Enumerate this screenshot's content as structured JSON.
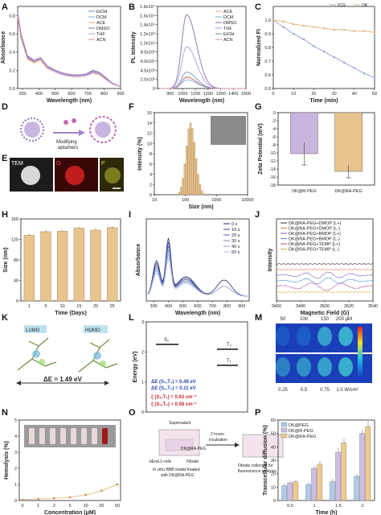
{
  "panel_labels": [
    "A",
    "B",
    "C",
    "D",
    "E",
    "F",
    "G",
    "H",
    "I",
    "J",
    "K",
    "L",
    "M",
    "N",
    "O",
    "P"
  ],
  "colors": {
    "EtOH": "#6e8fc4",
    "DCM": "#7fb0d9",
    "ACE": "#e8b27a",
    "DMSO": "#8e6db3",
    "THF": "#b39ddb",
    "ACN": "#d48fae",
    "ICG": "#9aa9d6",
    "DK": "#e3b887",
    "bar_tan": "#e8c48f",
    "bar_purple": "#c8b4dd",
    "dk_peg": "#aecbe8",
    "dk_r_peg": "#cdbce3",
    "dk_ra_peg": "#f0c98e"
  },
  "panel_d": {
    "arrow_label_line1": "Modifying",
    "arrow_label_line2": "aptamers"
  },
  "panel_e": {
    "labels": [
      "TEM",
      "O",
      "P"
    ]
  },
  "panel_k": {
    "lumo": "LUMO",
    "homo": "HOMO",
    "delta": "ΔE = 1.49 eV"
  },
  "panel_l": {
    "s1": "S₁",
    "t2": "T₂",
    "t1": "T₁",
    "de1": "ΔE (S₁,T₁) = 0.48 eV",
    "de2": "ΔE (S₁,T₂) = 0.11 eV",
    "xi1": "ξ (S₁,T₁) = 0.63 cm⁻¹",
    "xi2": "ξ (S₁,T₂) = 0.56 cm⁻¹"
  },
  "panel_m": {
    "top": [
      "50",
      "100",
      "150",
      "200 μM"
    ],
    "bottom": [
      "0.25",
      "0.5",
      "0.75",
      "1.0 W/cm²"
    ]
  },
  "panel_o": {
    "supernatant": "Supernatant",
    "incubation1": "2 hours",
    "incubation2": "incubation",
    "drug": "DK@RA-PEG",
    "cells": "bEnd.3 cells",
    "filtrate": "Filtrate",
    "model1": "In vitro BBB model treated",
    "model2": "with DK@RA-PEG",
    "collected1": "Filtrate collected for",
    "collected2": "fluorescence analysis"
  },
  "chart_data": [
    {
      "id": "A",
      "type": "line",
      "xlabel": "Wavelength (nm)",
      "ylabel": "Absorbance",
      "xlim": [
        270,
        900
      ],
      "ylim": [
        0,
        0.9
      ],
      "xticks": [
        300,
        400,
        500,
        600,
        700,
        800,
        900
      ],
      "yticks": [
        0.0,
        0.2,
        0.4,
        0.6,
        0.8
      ],
      "legend": "top-right",
      "series": [
        {
          "name": "EtOH",
          "x": [
            270,
            290,
            330,
            370,
            410,
            450,
            490,
            530,
            570,
            610,
            650,
            690,
            730,
            770,
            810,
            850,
            900
          ],
          "y": [
            0.82,
            0.58,
            0.35,
            0.3,
            0.33,
            0.24,
            0.2,
            0.17,
            0.15,
            0.14,
            0.14,
            0.15,
            0.19,
            0.17,
            0.11,
            0.06,
            0.02
          ]
        },
        {
          "name": "DCM",
          "x": [
            270,
            290,
            330,
            370,
            410,
            450,
            490,
            530,
            570,
            610,
            650,
            690,
            730,
            770,
            810,
            850,
            900
          ],
          "y": [
            0.8,
            0.56,
            0.33,
            0.3,
            0.32,
            0.23,
            0.2,
            0.17,
            0.15,
            0.14,
            0.14,
            0.15,
            0.18,
            0.16,
            0.1,
            0.05,
            0.02
          ]
        },
        {
          "name": "ACE",
          "x": [
            270,
            290,
            330,
            370,
            410,
            450,
            490,
            530,
            570,
            610,
            650,
            690,
            730,
            770,
            810,
            850,
            900
          ],
          "y": [
            0.78,
            0.55,
            0.32,
            0.28,
            0.31,
            0.22,
            0.19,
            0.16,
            0.14,
            0.13,
            0.13,
            0.14,
            0.17,
            0.15,
            0.1,
            0.05,
            0.02
          ]
        },
        {
          "name": "DMSO",
          "x": [
            270,
            290,
            330,
            370,
            410,
            450,
            490,
            530,
            570,
            610,
            650,
            690,
            730,
            770,
            810,
            850,
            900
          ],
          "y": [
            0.84,
            0.6,
            0.36,
            0.31,
            0.34,
            0.25,
            0.21,
            0.18,
            0.16,
            0.15,
            0.15,
            0.16,
            0.2,
            0.18,
            0.12,
            0.06,
            0.02
          ]
        },
        {
          "name": "THF",
          "x": [
            270,
            290,
            330,
            370,
            410,
            450,
            490,
            530,
            570,
            610,
            650,
            690,
            730,
            770,
            810,
            850,
            900
          ],
          "y": [
            0.81,
            0.57,
            0.34,
            0.29,
            0.33,
            0.24,
            0.2,
            0.17,
            0.15,
            0.14,
            0.14,
            0.15,
            0.18,
            0.17,
            0.11,
            0.06,
            0.02
          ]
        },
        {
          "name": "ACN",
          "x": [
            270,
            290,
            330,
            370,
            410,
            450,
            490,
            530,
            570,
            610,
            650,
            690,
            730,
            770,
            810,
            850,
            900
          ],
          "y": [
            0.79,
            0.56,
            0.33,
            0.29,
            0.32,
            0.23,
            0.19,
            0.16,
            0.14,
            0.13,
            0.13,
            0.14,
            0.17,
            0.16,
            0.1,
            0.05,
            0.02
          ]
        }
      ]
    },
    {
      "id": "B",
      "type": "line",
      "xlabel": "Wavelength (nm)",
      "ylabel": "PL Intensity",
      "xlim": [
        800,
        1500
      ],
      "ylim": [
        0,
        18000
      ],
      "xticks": [
        900,
        1000,
        1100,
        1200,
        1300,
        1400,
        1500
      ],
      "yticks": [
        0,
        2000,
        4000,
        6000,
        8000,
        10000,
        12000,
        14000,
        16000,
        18000
      ],
      "ytick_labels": [
        "0",
        "2.0x10³",
        "4.0x10³",
        "6.0x10³",
        "8.0x10³",
        "1.0x10⁴",
        "1.2x10⁴",
        "1.4x10⁴",
        "1.6x10⁴",
        "1.8x10⁴"
      ],
      "legend": "top-right",
      "series": [
        {
          "name": "ACE",
          "peak": 2600,
          "center": 1030
        },
        {
          "name": "DCM",
          "peak": 1900,
          "center": 1030
        },
        {
          "name": "DMSO",
          "peak": 16200,
          "center": 1030
        },
        {
          "name": "THF",
          "peak": 9200,
          "center": 1030
        },
        {
          "name": "EtOH",
          "peak": 3600,
          "center": 1030
        },
        {
          "name": "ACN",
          "peak": 2400,
          "center": 1030
        }
      ]
    },
    {
      "id": "C",
      "type": "line",
      "xlabel": "Time (min)",
      "ylabel": "Normalized FI",
      "xlim": [
        0,
        50
      ],
      "ylim": [
        0.5,
        1.1
      ],
      "xticks": [
        0,
        10,
        20,
        30,
        40,
        50
      ],
      "yticks": [
        0.5,
        0.6,
        0.7,
        0.8,
        0.9,
        1.0
      ],
      "legend": "top-right",
      "series": [
        {
          "name": "ICG",
          "x": [
            0,
            5,
            10,
            15,
            20,
            25,
            30,
            35,
            40,
            45,
            50
          ],
          "y": [
            1.0,
            0.95,
            0.9,
            0.86,
            0.81,
            0.77,
            0.73,
            0.69,
            0.65,
            0.61,
            0.58
          ]
        },
        {
          "name": "DK",
          "x": [
            0,
            5,
            10,
            15,
            20,
            25,
            30,
            35,
            40,
            45,
            50
          ],
          "y": [
            1.0,
            0.99,
            0.97,
            0.96,
            0.95,
            0.94,
            0.93,
            0.93,
            0.92,
            0.92,
            0.91
          ]
        }
      ]
    },
    {
      "id": "F",
      "type": "bar",
      "xlabel": "Size (nm)",
      "ylabel": "Intensity (%)",
      "xscale": "log",
      "xlim": [
        10,
        10000
      ],
      "ylim": [
        0,
        16
      ],
      "xticks": [
        10,
        100,
        1000,
        10000
      ],
      "yticks": [
        0,
        2,
        4,
        6,
        8,
        10,
        12,
        14,
        16
      ],
      "x": [
        60,
        68,
        78,
        90,
        104,
        120,
        138,
        159,
        183,
        211,
        243,
        280,
        322,
        370
      ],
      "values": [
        0.5,
        1.5,
        3.2,
        6.0,
        9.5,
        12.8,
        14.0,
        13.0,
        10.2,
        7.0,
        4.0,
        2.0,
        0.8,
        0.2
      ]
    },
    {
      "id": "G",
      "type": "bar",
      "xlabel": "",
      "ylabel": "Zeta Potential (mV)",
      "ylim": [
        -18,
        0
      ],
      "yticks": [
        0,
        -2,
        -4,
        -6,
        -8,
        -10,
        -12,
        -14,
        -16,
        -18
      ],
      "categories": [
        "DK@R-PEG",
        "DK@RA-PEG"
      ],
      "values": [
        -10.2,
        -14.6
      ],
      "errors": [
        2.8,
        1.6
      ]
    },
    {
      "id": "H",
      "type": "bar",
      "xlabel": "Time (Days)",
      "ylabel": "Size (nm)",
      "ylim": [
        0,
        160
      ],
      "yticks": [
        0,
        40,
        80,
        120,
        160
      ],
      "categories": [
        "1",
        "5",
        "10",
        "15",
        "20",
        "25"
      ],
      "values": [
        128,
        135,
        136,
        142,
        138,
        143
      ],
      "errors": [
        3,
        3,
        3,
        2,
        3,
        3
      ]
    },
    {
      "id": "I",
      "type": "line",
      "xlabel": "Wavelength (nm)",
      "ylabel": "Absorbance",
      "xlim": [
        250,
        950
      ],
      "xticks": [
        300,
        400,
        500,
        600,
        700,
        800,
        900
      ],
      "legend": "top-right",
      "series": [
        {
          "name": "0 s",
          "scale": 1.0
        },
        {
          "name": "10 s",
          "scale": 0.93
        },
        {
          "name": "20 s",
          "scale": 0.86
        },
        {
          "name": "30 s",
          "scale": 0.79
        },
        {
          "name": "40 s",
          "scale": 0.72
        },
        {
          "name": "50 s",
          "scale": 0.65
        }
      ]
    },
    {
      "id": "J",
      "type": "line",
      "xlabel": "Magnetic Field (G)",
      "ylabel": "Intensity",
      "xlim": [
        3460,
        3540
      ],
      "xticks": [
        3460,
        3480,
        3500,
        3520,
        3540
      ],
      "legend": "top",
      "series": [
        {
          "name": "DK@RA-PEG+DMOP (L+)",
          "color": "#2b2b2b"
        },
        {
          "name": "DK@RA-PEG+DMOP (L-)",
          "color": "#e07a4a"
        },
        {
          "name": "DK@RA-PEG+BMOP (L+)",
          "color": "#7a5bbf"
        },
        {
          "name": "DK@RA-PEG+BMOP (L-)",
          "color": "#4a8ed6"
        },
        {
          "name": "DK@RA-PEG+TEMP (L+)",
          "color": "#c44a8e"
        },
        {
          "name": "DK@RA-PEG+TEMP (L-)",
          "color": "#d6b04a"
        }
      ]
    },
    {
      "id": "L",
      "type": "table",
      "ylabel": "Energy (eV)",
      "ylim": [
        0,
        3
      ],
      "yticks": [
        0,
        1,
        2,
        3
      ],
      "levels": [
        {
          "name": "S₁",
          "value": 1.6
        },
        {
          "name": "T₂",
          "value": 1.5
        },
        {
          "name": "T₁",
          "value": 1.1
        }
      ]
    },
    {
      "id": "N",
      "type": "line",
      "xlabel": "Concentration (μM)",
      "ylabel": "Hemolysis (%)",
      "xlim": [
        0,
        50
      ],
      "ylim": [
        0,
        5
      ],
      "xticks": [
        0,
        1,
        2,
        5,
        10,
        20,
        50
      ],
      "yticks": [
        0,
        1,
        2,
        3,
        4,
        5
      ],
      "series": [
        {
          "name": "",
          "x": [
            0,
            1,
            2,
            5,
            10,
            20,
            50
          ],
          "y": [
            0.05,
            0.1,
            0.15,
            0.2,
            0.35,
            0.6,
            1.0
          ]
        }
      ]
    },
    {
      "id": "P",
      "type": "bar",
      "xlabel": "Time (h)",
      "ylabel": "Transcellular diffusion (%)",
      "ylim": [
        0,
        60
      ],
      "yticks": [
        0,
        10,
        20,
        30,
        40,
        50,
        60
      ],
      "categories": [
        "0.5",
        "1",
        "1.5",
        "2"
      ],
      "legend": "top-left",
      "series": [
        {
          "name": "DK@PEG",
          "values": [
            11,
            12,
            14,
            18
          ],
          "errors": [
            1.5,
            1.5,
            2,
            2
          ]
        },
        {
          "name": "DK@R-PEG",
          "values": [
            13,
            24,
            36,
            50
          ],
          "errors": [
            1.5,
            2,
            3,
            3
          ]
        },
        {
          "name": "DK@RA-PEG",
          "values": [
            14,
            27,
            43,
            55
          ],
          "errors": [
            1.5,
            2.5,
            3,
            4
          ]
        }
      ]
    }
  ]
}
